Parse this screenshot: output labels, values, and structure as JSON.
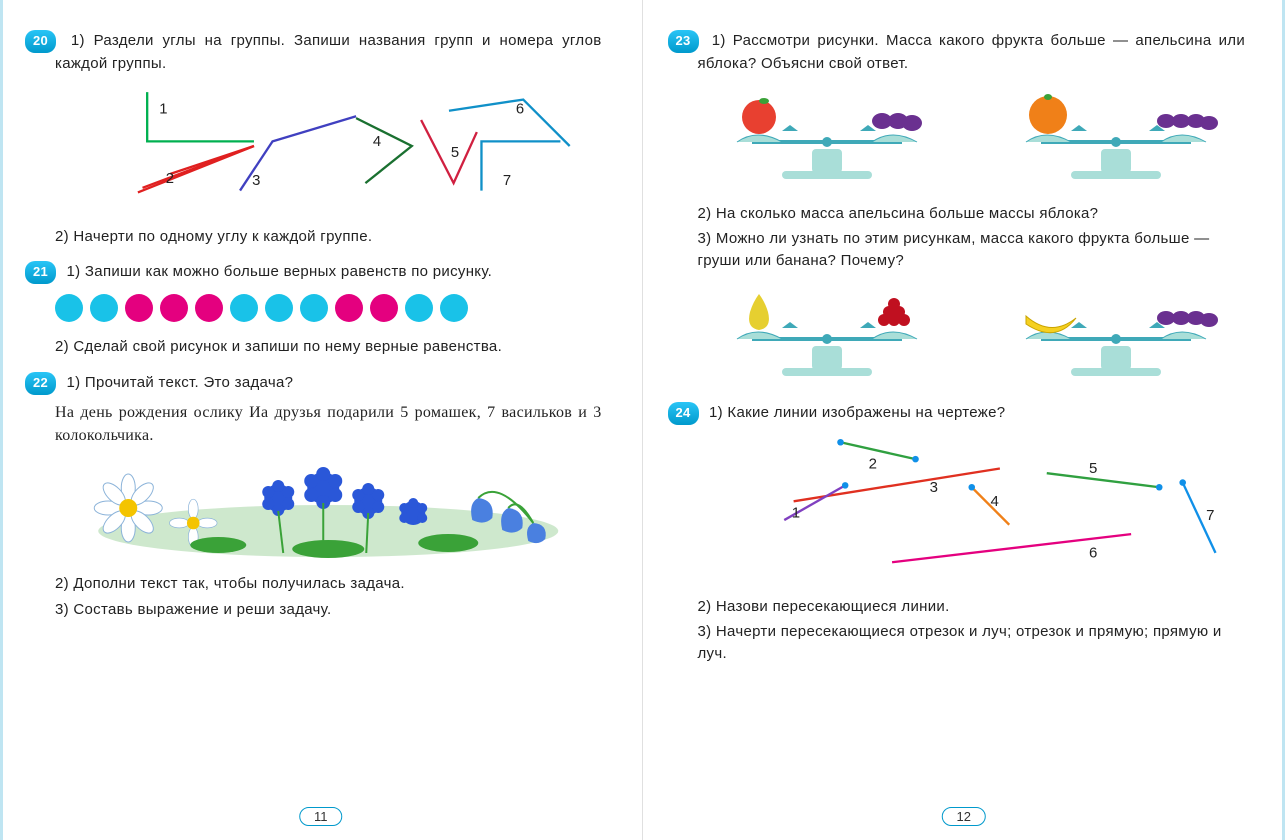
{
  "page_left_num": "11",
  "page_right_num": "12",
  "accent_color": "#0099cc",
  "task20": {
    "badge": "20",
    "line1": "1) Раздели углы на группы. Запиши названия групп и номера углов каждой группы.",
    "line2": "2) Начерти по одному углу к каждой группе.",
    "angles": {
      "labels": [
        "1",
        "2",
        "3",
        "4",
        "5",
        "6",
        "7"
      ],
      "colors": {
        "1": "#00b050",
        "2": "#e02020",
        "3": "#4040c0",
        "4": "#1a7030",
        "5": "#d02040",
        "6": "#1090c8",
        "7": "#1090c8"
      }
    }
  },
  "task21": {
    "badge": "21",
    "line1": "1) Запиши как можно больше верных равенств по рисунку.",
    "line2": "2) Сделай свой рисунок и запиши по нему верные равенства.",
    "dots": {
      "count": 12,
      "pattern": [
        "c",
        "c",
        "m",
        "m",
        "m",
        "c",
        "c",
        "c",
        "m",
        "m",
        "c",
        "c"
      ],
      "colors": {
        "c": "#19c2e8",
        "m": "#e4007f"
      }
    }
  },
  "task22": {
    "badge": "22",
    "line1": "1) Прочитай текст. Это задача?",
    "story": "На день рождения ослику Иа друзья подарили 5 ромашек, 7 васильков и 3 колокольчика.",
    "line2": "2) Дополни текст так, чтобы получилась задача.",
    "line3": "3) Составь выражение и реши задачу.",
    "flower_colors": {
      "daisy_petal": "#ffffff",
      "daisy_center": "#f4c400",
      "cornflower": "#2a57d8",
      "bell": "#4a80e0",
      "leaf": "#3aa238"
    }
  },
  "task23": {
    "badge": "23",
    "line1": "1) Рассмотри рисунки. Масса какого фрукта больше — апельсина или яблока? Объясни свой ответ.",
    "line2": "2) На сколько масса апельсина больше массы яблока?",
    "line3": "3) Можно ли узнать по этим рисункам, масса какого фрукта больше — груши или банана? Почему?",
    "scales": {
      "fruit_colors": {
        "apple": "#e84030",
        "apple_leaf": "#3aa238",
        "orange": "#f08018",
        "grapes": "#6a3090",
        "pear": "#e6cf30",
        "cherries": "#c01020",
        "banana": "#f5d020"
      },
      "scale_color": "#a9ded8",
      "scale_accent": "#3fa9b8"
    }
  },
  "task24": {
    "badge": "24",
    "line1": "1) Какие линии изображены на чертеже?",
    "line2": "2) Назови пересекающиеся линии.",
    "line3": "3) Начерти пересекающиеся отрезок и луч; отрезок и прямую; прямую и луч.",
    "lines": {
      "labels": [
        "1",
        "2",
        "3",
        "4",
        "5",
        "6",
        "7"
      ],
      "colors": {
        "1": "#8040c0",
        "2": "#30a040",
        "3": "#e03020",
        "4": "#f08018",
        "5": "#30a040",
        "6": "#e4007f",
        "7": "#1090e8"
      },
      "endpoint_color": "#1090e8"
    }
  }
}
